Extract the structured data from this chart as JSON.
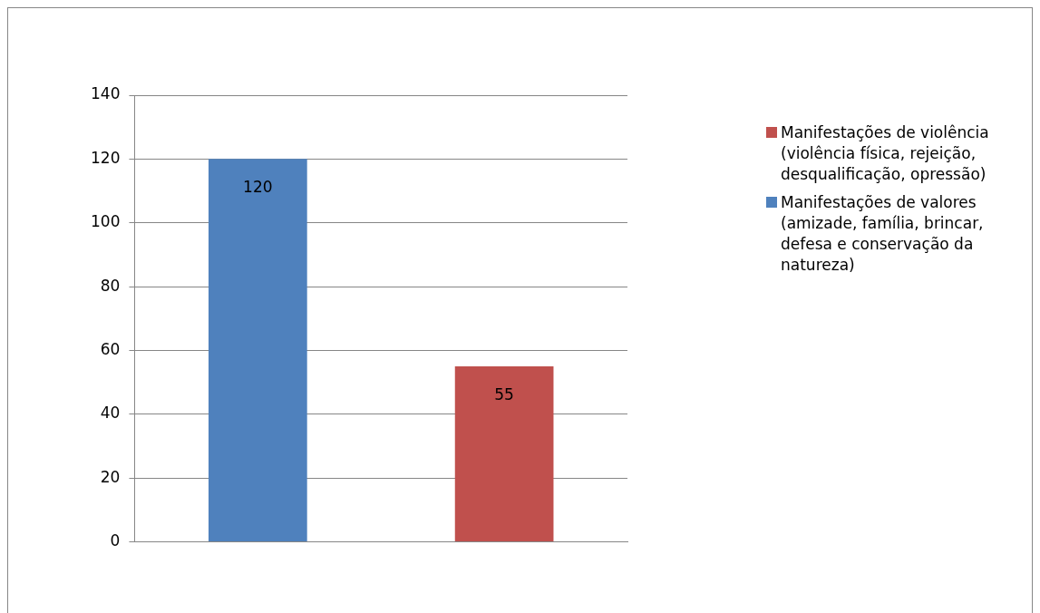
{
  "chart_data": {
    "type": "bar",
    "categories": [
      null,
      null
    ],
    "series": [
      {
        "name": "Manifestações de violência (violência física, rejeição, desqualificação, opressão)",
        "color": "#c0504d",
        "values": [
          null,
          55
        ]
      },
      {
        "name": "Manifestações de valores (amizade, família, brincar, defesa e conservação da natureza)",
        "color": "#4f81bd",
        "values": [
          120,
          null
        ]
      }
    ],
    "ylim": [
      0,
      140
    ],
    "yticks": [
      0,
      20,
      40,
      60,
      80,
      100,
      120,
      140
    ],
    "grid": "y",
    "legend": "right",
    "data_labels": true
  }
}
